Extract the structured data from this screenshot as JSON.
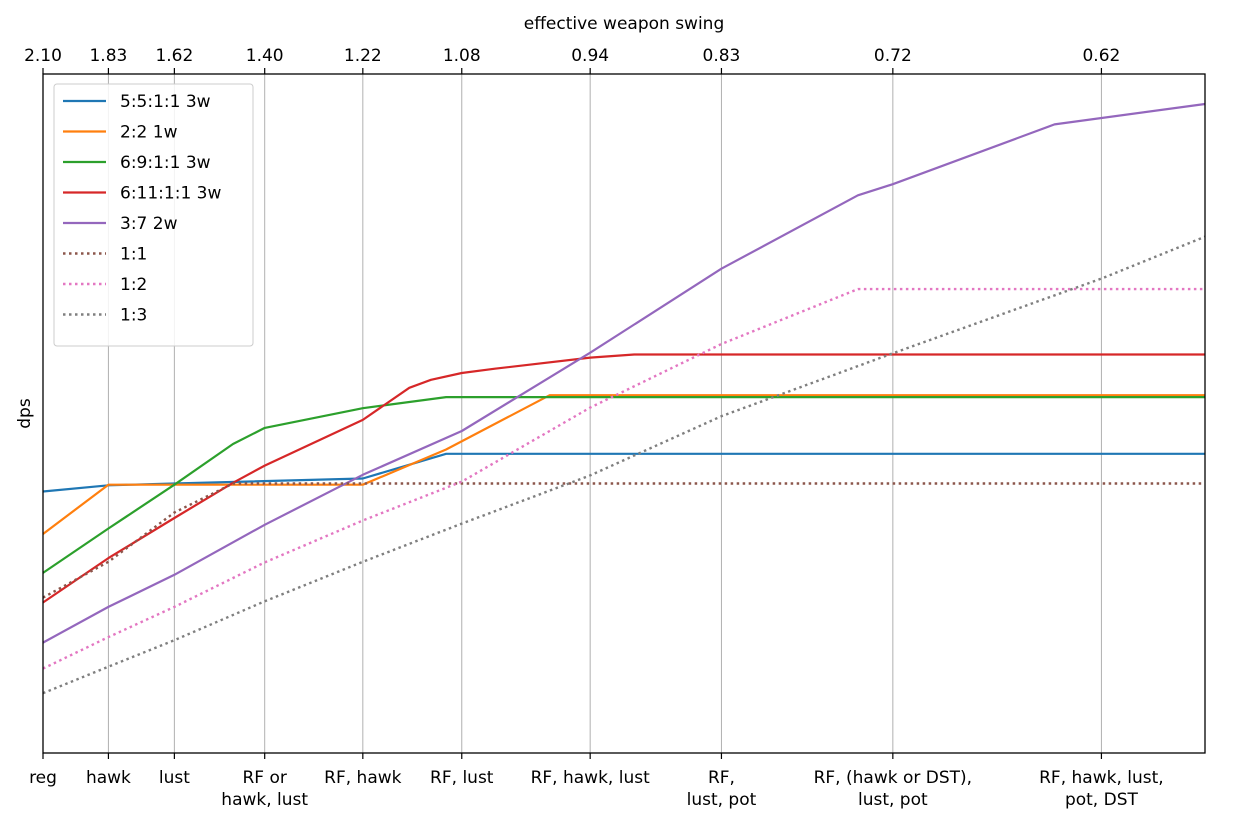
{
  "chart_data": {
    "type": "line",
    "title": "",
    "xlabel": "",
    "ylabel": "dps",
    "top_xlabel": "effective weapon swing",
    "x_ticks": [
      {
        "pos": 2.1,
        "label": "reg"
      },
      {
        "pos": 1.83,
        "label": "hawk"
      },
      {
        "pos": 1.62,
        "label": "lust"
      },
      {
        "pos": 1.4,
        "label": "RF or\nhawk, lust"
      },
      {
        "pos": 1.22,
        "label": "RF, hawk"
      },
      {
        "pos": 1.08,
        "label": "RF, lust"
      },
      {
        "pos": 0.94,
        "label": "RF, hawk, lust"
      },
      {
        "pos": 0.83,
        "label": "RF,\nlust, pot"
      },
      {
        "pos": 0.72,
        "label": "RF, (hawk or DST),\nlust, pot"
      },
      {
        "pos": 0.62,
        "label": "RF, hawk, lust,\npot, DST"
      }
    ],
    "top_ticks": [
      "2.10",
      "1.83",
      "1.62",
      "1.40",
      "1.22",
      "1.08",
      "0.94",
      "0.83",
      "0.72",
      "0.62"
    ],
    "x_scale": "reciprocal",
    "xlim": [
      2.1,
      0.58
    ],
    "ylim": [
      0,
      1
    ],
    "y_ticks_visible": false,
    "grid": "x",
    "legend_position": "upper left",
    "series": [
      {
        "name": "5:5:1:1 3w",
        "color": "#1f77b4",
        "style": "solid",
        "points": [
          [
            2.1,
            0.372
          ],
          [
            1.83,
            0.382
          ],
          [
            1.62,
            0.385
          ],
          [
            1.22,
            0.393
          ],
          [
            1.1,
            0.433
          ],
          [
            0.58,
            0.433
          ]
        ]
      },
      {
        "name": "2:2 1w",
        "color": "#ff7f0e",
        "style": "solid",
        "points": [
          [
            2.1,
            0.303
          ],
          [
            1.83,
            0.383
          ],
          [
            1.22,
            0.383
          ],
          [
            1.1,
            0.44
          ],
          [
            0.98,
            0.528
          ],
          [
            0.58,
            0.528
          ]
        ]
      },
      {
        "name": "6:9:1:1 3w",
        "color": "#2ca02c",
        "style": "solid",
        "points": [
          [
            2.1,
            0.24
          ],
          [
            1.83,
            0.312
          ],
          [
            1.62,
            0.383
          ],
          [
            1.47,
            0.449
          ],
          [
            1.4,
            0.475
          ],
          [
            1.22,
            0.507
          ],
          [
            1.1,
            0.525
          ],
          [
            0.58,
            0.525
          ]
        ]
      },
      {
        "name": "6:11:1:1 3w",
        "color": "#d62728",
        "style": "solid",
        "points": [
          [
            2.1,
            0.192
          ],
          [
            1.83,
            0.264
          ],
          [
            1.62,
            0.329
          ],
          [
            1.47,
            0.386
          ],
          [
            1.4,
            0.414
          ],
          [
            1.22,
            0.488
          ],
          [
            1.15,
            0.54
          ],
          [
            1.12,
            0.553
          ],
          [
            1.08,
            0.564
          ],
          [
            1.04,
            0.571
          ],
          [
            0.94,
            0.589
          ],
          [
            0.9,
            0.594
          ],
          [
            0.58,
            0.594
          ]
        ]
      },
      {
        "name": "3:7 2w",
        "color": "#9467bd",
        "style": "solid",
        "points": [
          [
            2.1,
            0.127
          ],
          [
            1.83,
            0.185
          ],
          [
            1.62,
            0.237
          ],
          [
            1.4,
            0.318
          ],
          [
            1.22,
            0.399
          ],
          [
            1.08,
            0.47
          ],
          [
            0.94,
            0.597
          ],
          [
            0.83,
            0.733
          ],
          [
            0.74,
            0.852
          ],
          [
            0.72,
            0.87
          ],
          [
            0.64,
            0.967
          ],
          [
            0.58,
            1.0
          ]
        ]
      },
      {
        "name": "1:1",
        "color": "#8c564b",
        "style": "dotted",
        "points": [
          [
            2.1,
            0.2
          ],
          [
            1.83,
            0.258
          ],
          [
            1.62,
            0.338
          ],
          [
            1.47,
            0.385
          ],
          [
            0.58,
            0.385
          ]
        ]
      },
      {
        "name": "1:2",
        "color": "#e377c2",
        "style": "dotted",
        "points": [
          [
            2.1,
            0.085
          ],
          [
            1.83,
            0.136
          ],
          [
            1.62,
            0.185
          ],
          [
            1.4,
            0.257
          ],
          [
            1.22,
            0.325
          ],
          [
            1.08,
            0.388
          ],
          [
            0.94,
            0.508
          ],
          [
            0.83,
            0.611
          ],
          [
            0.74,
            0.7
          ],
          [
            0.58,
            0.7
          ]
        ]
      },
      {
        "name": "1:3",
        "color": "#7f7f7f",
        "style": "dotted",
        "points": [
          [
            2.1,
            0.045
          ],
          [
            1.83,
            0.088
          ],
          [
            1.62,
            0.131
          ],
          [
            1.4,
            0.194
          ],
          [
            1.22,
            0.258
          ],
          [
            1.08,
            0.32
          ],
          [
            0.94,
            0.398
          ],
          [
            0.83,
            0.494
          ],
          [
            0.72,
            0.596
          ],
          [
            0.62,
            0.717
          ],
          [
            0.58,
            0.785
          ]
        ]
      }
    ]
  }
}
